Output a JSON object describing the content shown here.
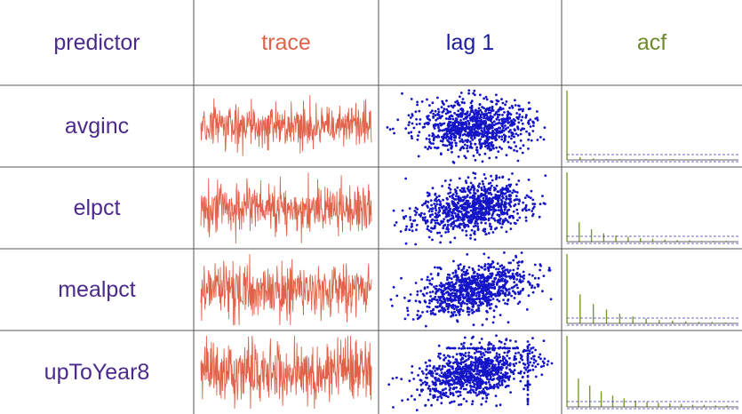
{
  "colors": {
    "header_predictor": "#4b2a8c",
    "header_trace": "#e0624a",
    "header_lag": "#1c1c9c",
    "header_acf": "#6f8a2b",
    "row_label": "#4b2a8c",
    "trace_line": "#e0624a",
    "lag_points": "#1414c8",
    "acf_bars": "#7a9a2a",
    "acf_bounds": "#3b3bb5",
    "grid_lines": "#555555"
  },
  "headers": {
    "predictor": "predictor",
    "trace": "trace",
    "lag": "lag 1",
    "acf": "acf"
  },
  "chart_data": {
    "type": "table",
    "columns": [
      "predictor",
      "trace",
      "lag 1",
      "acf"
    ],
    "rows": [
      {
        "predictor": "avginc",
        "trace_amplitude": 0.3,
        "lag1_correlation": 0.05,
        "lag1_outliers": false,
        "acf": [
          1.0,
          0.04,
          0.02,
          0.01,
          0.01,
          0.0,
          0.01,
          0.0,
          0.01,
          0.0,
          0.0,
          0.01,
          0.0
        ]
      },
      {
        "predictor": "elpct",
        "trace_amplitude": 0.34,
        "lag1_correlation": 0.28,
        "lag1_outliers": false,
        "acf": [
          1.0,
          0.28,
          0.18,
          0.12,
          0.09,
          0.07,
          0.05,
          0.04,
          0.03,
          0.02,
          0.02,
          0.01,
          0.01,
          0.01
        ]
      },
      {
        "predictor": "mealpct",
        "trace_amplitude": 0.34,
        "lag1_correlation": 0.42,
        "lag1_outliers": false,
        "acf": [
          1.0,
          0.42,
          0.28,
          0.2,
          0.14,
          0.1,
          0.07,
          0.05,
          0.04,
          0.03,
          0.02,
          0.02,
          0.01
        ]
      },
      {
        "predictor": "upToYear8",
        "trace_amplitude": 0.4,
        "lag1_correlation": 0.38,
        "lag1_outliers": true,
        "acf": [
          1.0,
          0.4,
          0.3,
          0.22,
          0.16,
          0.12,
          0.09,
          0.07,
          0.06,
          0.05,
          0.04,
          0.03,
          0.03,
          0.02,
          0.02
        ]
      }
    ]
  }
}
